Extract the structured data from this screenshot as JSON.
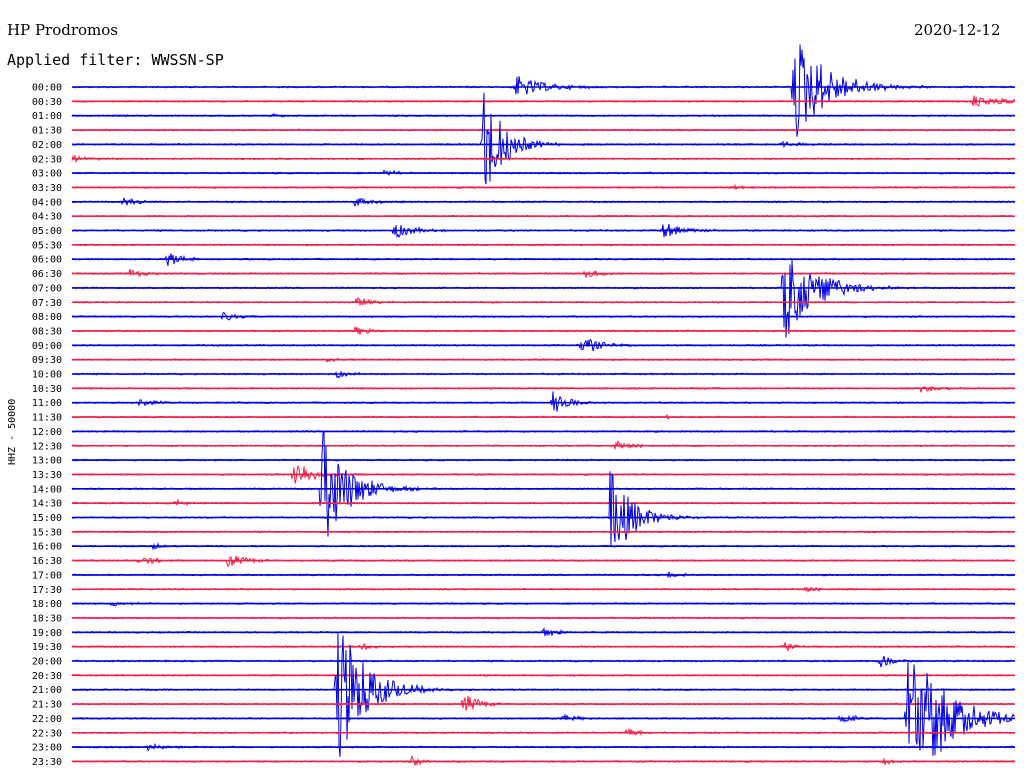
{
  "header": {
    "station": "HP Prodromos",
    "date": "2020-12-12",
    "filter_label": "Applied filter: WWSSN-SP"
  },
  "colors": {
    "even_rows": "#0000e6",
    "odd_rows": "#f0204a"
  },
  "chart_data": {
    "type": "line",
    "title": "HP Prodromos",
    "ylabel": "HHZ - 50000",
    "row_labels": [
      "00:00",
      "00:30",
      "01:00",
      "01:30",
      "02:00",
      "02:30",
      "03:00",
      "03:30",
      "04:00",
      "04:30",
      "05:00",
      "05:30",
      "06:00",
      "06:30",
      "07:00",
      "07:30",
      "08:00",
      "08:30",
      "09:00",
      "09:30",
      "10:00",
      "10:30",
      "11:00",
      "11:30",
      "12:00",
      "12:30",
      "13:00",
      "13:30",
      "14:00",
      "14:30",
      "15:00",
      "15:30",
      "16:00",
      "16:30",
      "17:00",
      "17:30",
      "18:00",
      "18:30",
      "19:00",
      "19:30",
      "20:00",
      "20:30",
      "21:00",
      "21:30",
      "22:00",
      "22:30",
      "23:00",
      "23:30"
    ],
    "events": [
      {
        "row": 0,
        "x": 0.47,
        "amp": 12,
        "decay": 28
      },
      {
        "row": 0,
        "x": 0.765,
        "amp": 60,
        "decay": 30
      },
      {
        "row": 1,
        "x": 0.955,
        "amp": 6,
        "decay": 40
      },
      {
        "row": 2,
        "x": 0.21,
        "amp": 2,
        "decay": 15
      },
      {
        "row": 4,
        "x": 0.435,
        "amp": 68,
        "decay": 18
      },
      {
        "row": 4,
        "x": 0.75,
        "amp": 3,
        "decay": 20
      },
      {
        "row": 5,
        "x": 0.0,
        "amp": 3,
        "decay": 18
      },
      {
        "row": 6,
        "x": 0.33,
        "amp": 4,
        "decay": 12
      },
      {
        "row": 7,
        "x": 0.7,
        "amp": 3,
        "decay": 10
      },
      {
        "row": 8,
        "x": 0.055,
        "amp": 5,
        "decay": 14
      },
      {
        "row": 8,
        "x": 0.3,
        "amp": 6,
        "decay": 16
      },
      {
        "row": 10,
        "x": 0.34,
        "amp": 10,
        "decay": 18
      },
      {
        "row": 10,
        "x": 0.625,
        "amp": 9,
        "decay": 20
      },
      {
        "row": 12,
        "x": 0.1,
        "amp": 9,
        "decay": 14
      },
      {
        "row": 13,
        "x": 0.06,
        "amp": 6,
        "decay": 14
      },
      {
        "row": 13,
        "x": 0.545,
        "amp": 5,
        "decay": 14
      },
      {
        "row": 14,
        "x": 0.755,
        "amp": 55,
        "decay": 28
      },
      {
        "row": 15,
        "x": 0.3,
        "amp": 6,
        "decay": 16
      },
      {
        "row": 16,
        "x": 0.16,
        "amp": 5,
        "decay": 16
      },
      {
        "row": 17,
        "x": 0.3,
        "amp": 5,
        "decay": 14
      },
      {
        "row": 18,
        "x": 0.54,
        "amp": 11,
        "decay": 16
      },
      {
        "row": 19,
        "x": 0.27,
        "amp": 6,
        "decay": 8
      },
      {
        "row": 20,
        "x": 0.28,
        "amp": 5,
        "decay": 12
      },
      {
        "row": 21,
        "x": 0.9,
        "amp": 4,
        "decay": 18
      },
      {
        "row": 22,
        "x": 0.07,
        "amp": 5,
        "decay": 14
      },
      {
        "row": 22,
        "x": 0.51,
        "amp": 12,
        "decay": 14
      },
      {
        "row": 23,
        "x": 0.63,
        "amp": 3,
        "decay": 10
      },
      {
        "row": 25,
        "x": 0.575,
        "amp": 7,
        "decay": 14
      },
      {
        "row": 27,
        "x": 0.235,
        "amp": 18,
        "decay": 16
      },
      {
        "row": 28,
        "x": 0.265,
        "amp": 64,
        "decay": 24
      },
      {
        "row": 29,
        "x": 0.11,
        "amp": 4,
        "decay": 10
      },
      {
        "row": 30,
        "x": 0.57,
        "amp": 50,
        "decay": 22
      },
      {
        "row": 32,
        "x": 0.085,
        "amp": 4,
        "decay": 10
      },
      {
        "row": 33,
        "x": 0.07,
        "amp": 6,
        "decay": 16
      },
      {
        "row": 33,
        "x": 0.165,
        "amp": 8,
        "decay": 16
      },
      {
        "row": 34,
        "x": 0.63,
        "amp": 4,
        "decay": 12
      },
      {
        "row": 35,
        "x": 0.775,
        "amp": 4,
        "decay": 12
      },
      {
        "row": 36,
        "x": 0.04,
        "amp": 3,
        "decay": 20
      },
      {
        "row": 38,
        "x": 0.5,
        "amp": 6,
        "decay": 12
      },
      {
        "row": 39,
        "x": 0.305,
        "amp": 5,
        "decay": 10
      },
      {
        "row": 39,
        "x": 0.755,
        "amp": 6,
        "decay": 10
      },
      {
        "row": 40,
        "x": 0.855,
        "amp": 9,
        "decay": 12
      },
      {
        "row": 42,
        "x": 0.28,
        "amp": 80,
        "decay": 26
      },
      {
        "row": 43,
        "x": 0.415,
        "amp": 12,
        "decay": 14
      },
      {
        "row": 44,
        "x": 0.52,
        "amp": 5,
        "decay": 12
      },
      {
        "row": 44,
        "x": 0.815,
        "amp": 6,
        "decay": 14
      },
      {
        "row": 44,
        "x": 0.885,
        "amp": 90,
        "decay": 34
      },
      {
        "row": 45,
        "x": 0.585,
        "amp": 8,
        "decay": 10
      },
      {
        "row": 46,
        "x": 0.08,
        "amp": 4,
        "decay": 16
      },
      {
        "row": 47,
        "x": 0.36,
        "amp": 5,
        "decay": 12
      },
      {
        "row": 47,
        "x": 0.86,
        "amp": 5,
        "decay": 10
      }
    ]
  }
}
